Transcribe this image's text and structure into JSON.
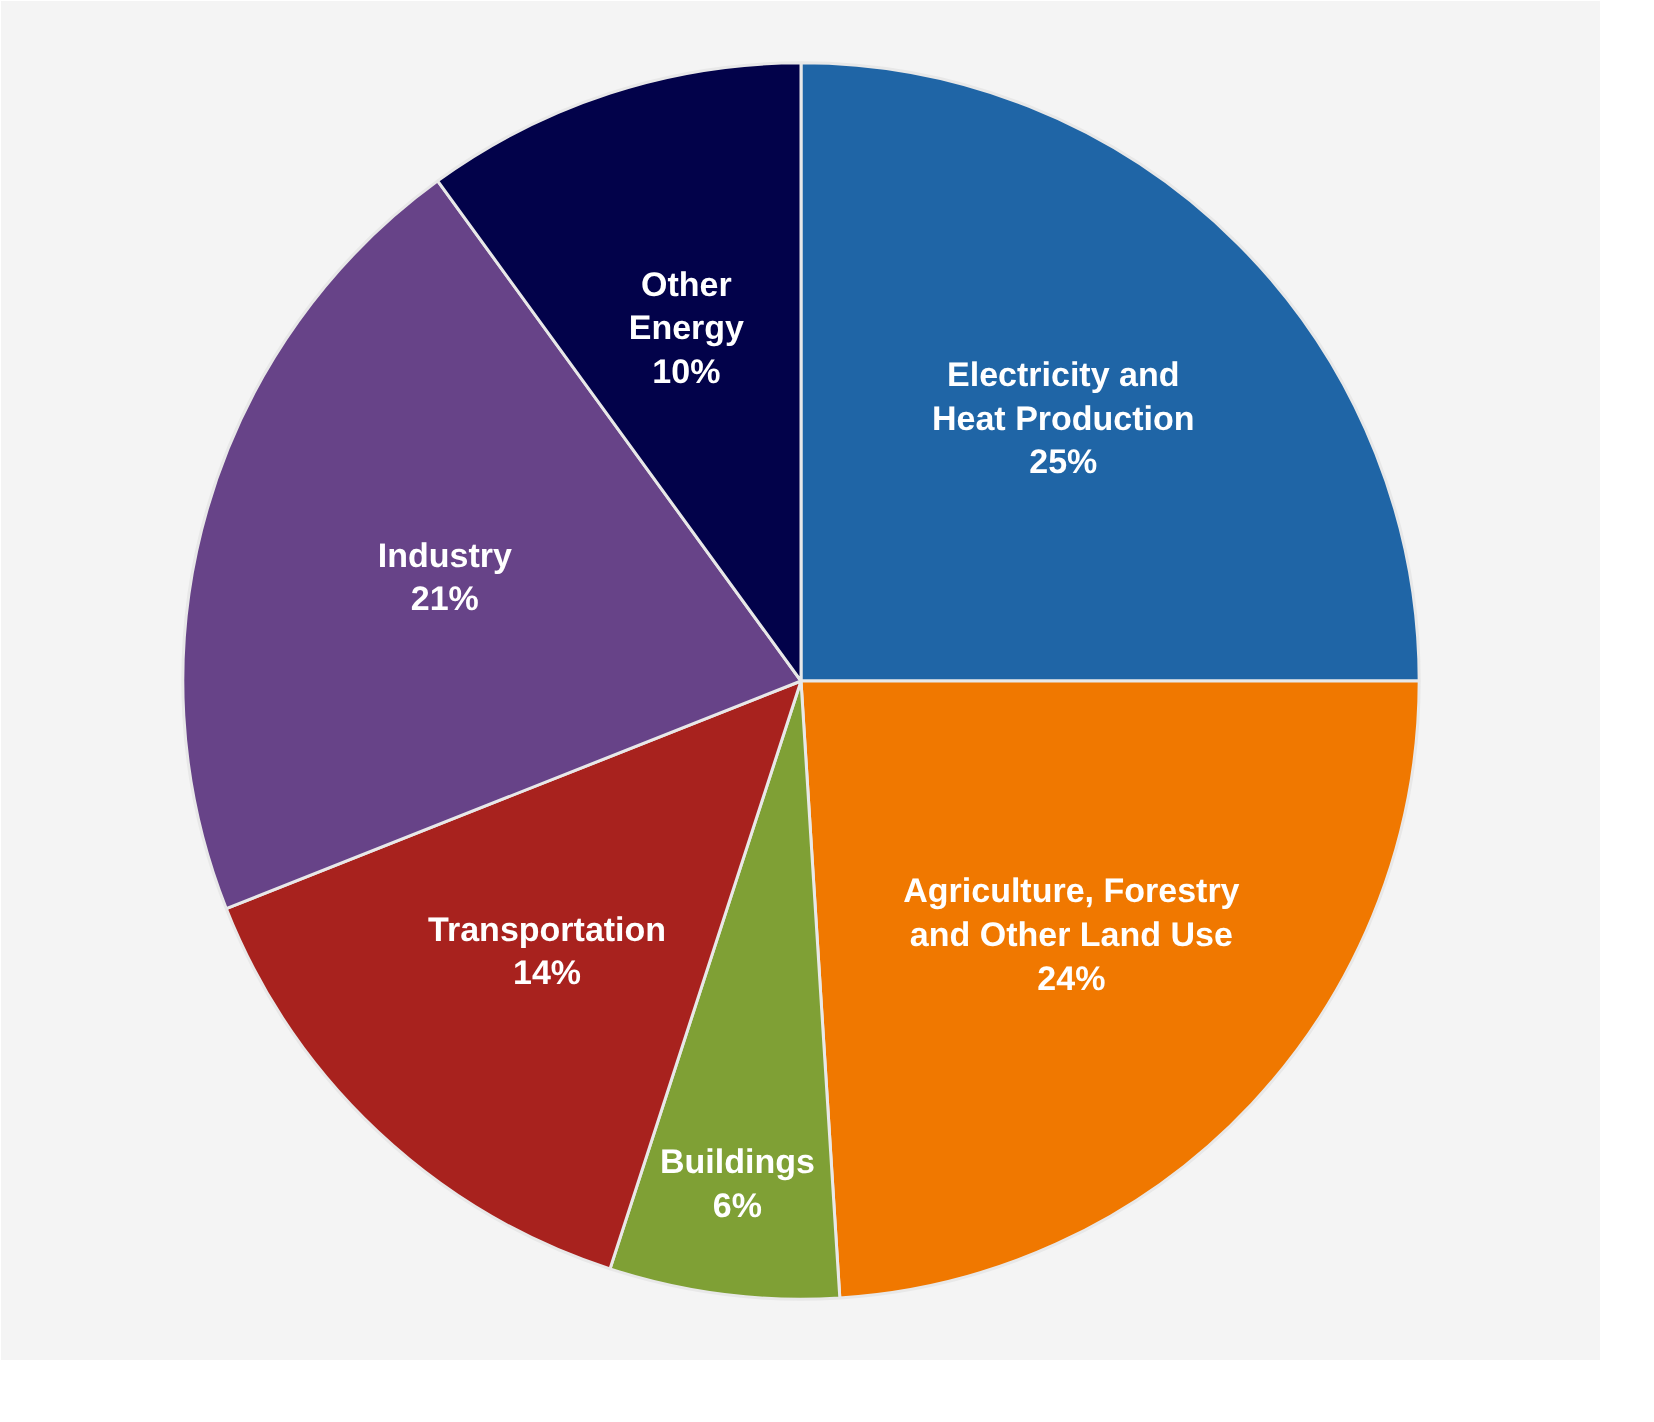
{
  "chart_data": {
    "type": "pie",
    "categories": [
      "Electricity and Heat Production",
      "Agriculture, Forestry and Other Land Use",
      "Buildings",
      "Transportation",
      "Industry",
      "Other Energy"
    ],
    "values": [
      25,
      24,
      6,
      14,
      21,
      10
    ],
    "colors": [
      "#1f65a6",
      "#f07800",
      "#7fa035",
      "#a8221e",
      "#674388",
      "#02024a"
    ],
    "value_labels": [
      "25%",
      "24%",
      "6%",
      "14%",
      "21%",
      "10%"
    ]
  }
}
